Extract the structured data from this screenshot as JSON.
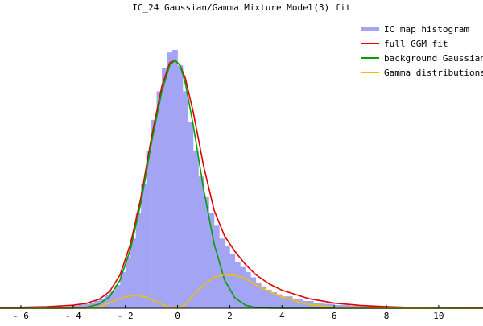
{
  "chart_data": {
    "type": "histogram-with-curves",
    "title": "IC_24 Gaussian/Gamma Mixture Model(3) fit",
    "xlabel": "",
    "ylabel": "",
    "xlim": [
      -6.8,
      11.7
    ],
    "ylim": [
      0,
      1.0
    ],
    "x_ticks": [
      -6,
      -4,
      -2,
      0,
      2,
      4,
      6,
      8,
      10
    ],
    "x_tick_labels": [
      "- 6",
      "- 4",
      "- 2",
      "0",
      "2",
      "4",
      "6",
      "8",
      "10"
    ],
    "grid": false,
    "legend_position": "top-right",
    "series": [
      {
        "name": "IC map histogram",
        "type": "histogram",
        "color": "#a4a4f4",
        "bin_width": 0.1,
        "x": [
          -5.0,
          -4.8,
          -4.6,
          -4.4,
          -4.2,
          -4.0,
          -3.8,
          -3.6,
          -3.4,
          -3.2,
          -3.0,
          -2.8,
          -2.6,
          -2.4,
          -2.2,
          -2.0,
          -1.8,
          -1.6,
          -1.4,
          -1.2,
          -1.0,
          -0.8,
          -0.6,
          -0.4,
          -0.2,
          0.0,
          0.2,
          0.4,
          0.6,
          0.8,
          1.0,
          1.2,
          1.4,
          1.6,
          1.8,
          2.0,
          2.2,
          2.4,
          2.6,
          2.8,
          3.0,
          3.2,
          3.4,
          3.6,
          3.8,
          4.0,
          4.4,
          4.8,
          5.2,
          5.6,
          6.0,
          6.6,
          7.2,
          7.8,
          8.6
        ],
        "y": [
          0.004,
          0.004,
          0.005,
          0.006,
          0.008,
          0.01,
          0.013,
          0.017,
          0.022,
          0.029,
          0.038,
          0.05,
          0.065,
          0.09,
          0.14,
          0.2,
          0.27,
          0.37,
          0.48,
          0.61,
          0.73,
          0.84,
          0.93,
          0.99,
          1.0,
          0.94,
          0.84,
          0.72,
          0.61,
          0.51,
          0.43,
          0.37,
          0.32,
          0.27,
          0.24,
          0.21,
          0.18,
          0.16,
          0.14,
          0.12,
          0.1,
          0.085,
          0.072,
          0.062,
          0.054,
          0.046,
          0.036,
          0.028,
          0.022,
          0.017,
          0.013,
          0.01,
          0.008,
          0.006,
          0.004
        ]
      },
      {
        "name": "full GGM fit",
        "type": "line",
        "color": "#e00000",
        "x": [
          -6.8,
          -5.0,
          -4.0,
          -3.5,
          -3.0,
          -2.6,
          -2.2,
          -1.8,
          -1.4,
          -1.0,
          -0.6,
          -0.3,
          -0.1,
          0.1,
          0.3,
          0.6,
          1.0,
          1.4,
          1.8,
          2.2,
          2.6,
          3.0,
          3.5,
          4.0,
          5.0,
          6.0,
          7.0,
          8.0,
          9.0,
          10.0,
          11.7
        ],
        "y": [
          0.002,
          0.006,
          0.012,
          0.019,
          0.035,
          0.065,
          0.13,
          0.25,
          0.43,
          0.66,
          0.86,
          0.95,
          0.96,
          0.94,
          0.89,
          0.76,
          0.55,
          0.38,
          0.28,
          0.22,
          0.17,
          0.13,
          0.095,
          0.07,
          0.038,
          0.02,
          0.011,
          0.006,
          0.003,
          0.002,
          0.001
        ]
      },
      {
        "name": "background Gaussian",
        "type": "line",
        "color": "#00a000",
        "x": [
          -6.8,
          -4.0,
          -3.5,
          -3.0,
          -2.6,
          -2.2,
          -1.8,
          -1.4,
          -1.0,
          -0.6,
          -0.3,
          -0.1,
          0.1,
          0.3,
          0.6,
          1.0,
          1.4,
          1.8,
          2.2,
          2.6,
          3.0,
          3.5,
          4.0,
          11.7
        ],
        "y": [
          0.0,
          0.0,
          0.004,
          0.016,
          0.045,
          0.11,
          0.23,
          0.41,
          0.64,
          0.84,
          0.94,
          0.96,
          0.94,
          0.87,
          0.71,
          0.46,
          0.25,
          0.11,
          0.04,
          0.012,
          0.003,
          0.0005,
          0.0,
          0.0
        ]
      },
      {
        "name": "Gamma distributions",
        "type": "line",
        "color": "#f0c000",
        "x": [
          -6.8,
          -3.5,
          -3.0,
          -2.5,
          -2.0,
          -1.6,
          -1.2,
          -0.8,
          -0.4,
          0.0,
          0.3,
          0.6,
          1.0,
          1.4,
          1.8,
          2.2,
          2.6,
          3.0,
          3.5,
          4.0,
          5.0,
          6.0,
          7.0,
          11.7
        ],
        "y": [
          0.0,
          0.0,
          0.005,
          0.025,
          0.045,
          0.05,
          0.043,
          0.025,
          0.008,
          0.0,
          0.015,
          0.05,
          0.09,
          0.12,
          0.13,
          0.128,
          0.115,
          0.09,
          0.065,
          0.043,
          0.015,
          0.004,
          0.001,
          0.0
        ]
      }
    ]
  }
}
